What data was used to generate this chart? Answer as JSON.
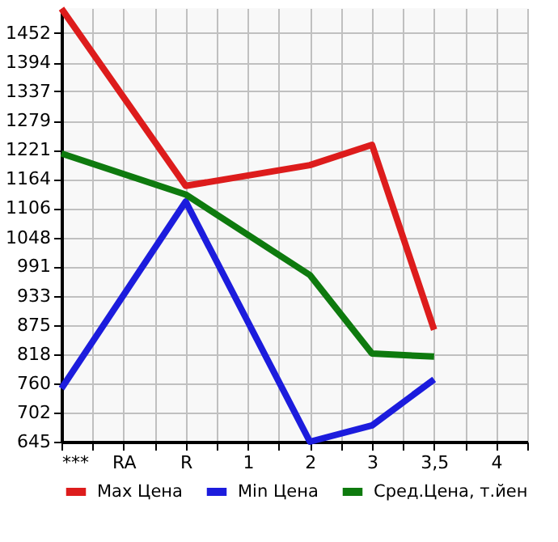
{
  "chart_data": {
    "type": "line",
    "categories": [
      "***",
      "RA",
      "R",
      "1",
      "2",
      "3",
      "3,5",
      "4"
    ],
    "series": [
      {
        "name": "Max Цена",
        "color": "#dd1c1c",
        "values": [
          1500,
          null,
          1150,
          null,
          1191,
          1231,
          866,
          null
        ]
      },
      {
        "name": "Min Цена",
        "color": "#1c1cdd",
        "values": [
          750,
          null,
          1119,
          null,
          645,
          677,
          768,
          null
        ]
      },
      {
        "name": "Сред.Цена, т.йен",
        "color": "#0e7a0e",
        "values": [
          1214,
          null,
          1133,
          null,
          974,
          819,
          813,
          null
        ]
      }
    ],
    "ylim": [
      645,
      1501
    ],
    "yticks": [
      645,
      702,
      760,
      818,
      875,
      933,
      991,
      1048,
      1106,
      1164,
      1221,
      1279,
      1337,
      1394,
      1452
    ],
    "grid": true,
    "legend": "bottom",
    "marker": "none",
    "line_style": "solid"
  }
}
